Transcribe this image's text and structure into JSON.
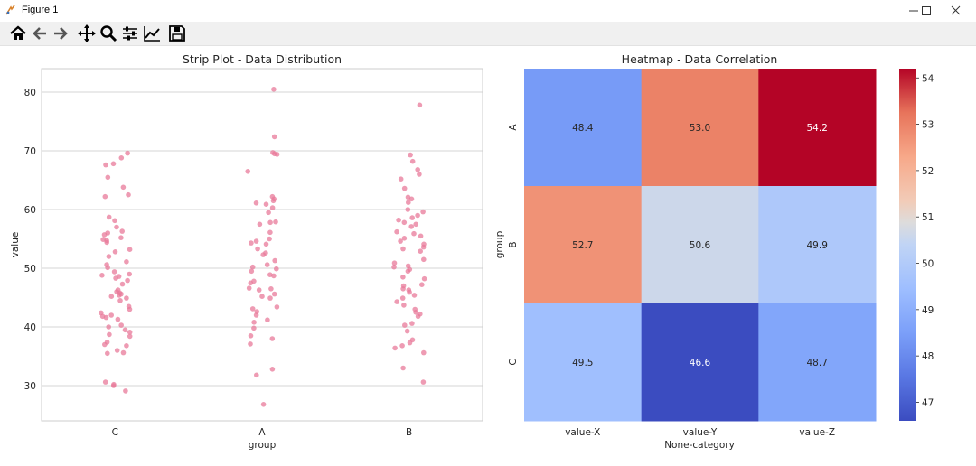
{
  "window": {
    "title": "Figure 1"
  },
  "toolbar": {
    "buttons": [
      {
        "name": "home-button",
        "icon": "home-icon"
      },
      {
        "name": "back-button",
        "icon": "arrow-left-icon"
      },
      {
        "name": "forward-button",
        "icon": "arrow-right-icon"
      },
      {
        "name": "pan-button",
        "icon": "move-icon"
      },
      {
        "name": "zoom-button",
        "icon": "magnifier-icon"
      },
      {
        "name": "configure-subplots-button",
        "icon": "sliders-icon"
      },
      {
        "name": "edit-axes-button",
        "icon": "chart-line-icon"
      },
      {
        "name": "save-button",
        "icon": "floppy-disk-icon"
      }
    ]
  },
  "chart_data": [
    {
      "type": "scatter",
      "subtype": "strip",
      "title": "Strip Plot - Data Distribution",
      "xlabel": "group",
      "ylabel": "value",
      "categories": [
        "C",
        "A",
        "B"
      ],
      "ylim": [
        24,
        84
      ],
      "yticks": [
        30,
        40,
        50,
        60,
        70,
        80
      ],
      "grid": true,
      "marker_color": "#e8799a",
      "series": [
        {
          "name": "C",
          "values": [
            69.6,
            68.8,
            67.8,
            67.6,
            65.5,
            63.8,
            62.5,
            62.2,
            58.7,
            58.1,
            57.0,
            56.3,
            56.0,
            55.7,
            55.2,
            54.9,
            54.7,
            54.4,
            53.2,
            52.8,
            52.0,
            51.1,
            50.6,
            50.1,
            49.4,
            49.0,
            48.8,
            48.6,
            48.3,
            47.9,
            47.3,
            46.3,
            46.0,
            45.8,
            45.6,
            45.4,
            45.2,
            44.9,
            44.5,
            43.5,
            43.0,
            42.4,
            42.0,
            41.8,
            41.6,
            41.3,
            40.3,
            40.0,
            39.5,
            39.1,
            38.7,
            38.4,
            37.4,
            37.0,
            36.8,
            36.0,
            35.6,
            35.5,
            30.6,
            30.2,
            30.0,
            29.1
          ]
        },
        {
          "name": "A",
          "values": [
            80.5,
            72.4,
            69.7,
            69.5,
            69.4,
            66.5,
            62.2,
            61.8,
            61.5,
            61.1,
            60.9,
            60.3,
            59.5,
            57.9,
            57.8,
            57.5,
            56.1,
            55.0,
            54.6,
            54.3,
            54.1,
            53.3,
            52.6,
            52.3,
            51.3,
            50.6,
            50.2,
            49.9,
            49.5,
            48.9,
            48.7,
            47.8,
            47.5,
            46.6,
            46.5,
            46.3,
            45.6,
            45.2,
            44.9,
            43.4,
            43.1,
            42.6,
            42.0,
            41.2,
            40.8,
            39.8,
            38.5,
            38.0,
            37.1,
            32.8,
            31.8,
            26.8
          ]
        },
        {
          "name": "B",
          "values": [
            77.8,
            69.3,
            68.2,
            66.8,
            66.0,
            65.2,
            63.6,
            62.1,
            61.8,
            61.2,
            60.0,
            59.6,
            59.0,
            58.6,
            58.2,
            57.8,
            57.5,
            57.1,
            56.2,
            55.9,
            55.5,
            55.1,
            54.6,
            54.1,
            53.6,
            53.3,
            52.9,
            51.5,
            50.9,
            50.4,
            50.2,
            49.8,
            49.5,
            48.5,
            48.2,
            47.2,
            47.0,
            46.5,
            46.3,
            45.9,
            45.4,
            44.9,
            44.3,
            43.7,
            43.0,
            42.5,
            42.2,
            41.8,
            40.6,
            40.3,
            39.3,
            37.8,
            37.3,
            36.8,
            36.4,
            35.6,
            33.0,
            30.6
          ]
        }
      ]
    },
    {
      "type": "heatmap",
      "title": "Heatmap - Data Correlation",
      "xlabel": "None-category",
      "ylabel": "group",
      "x_categories": [
        "value-X",
        "value-Y",
        "value-Z"
      ],
      "y_categories": [
        "A",
        "B",
        "C"
      ],
      "values": [
        [
          48.4,
          53.0,
          54.2
        ],
        [
          52.7,
          50.6,
          49.9
        ],
        [
          49.5,
          46.6,
          48.7
        ]
      ],
      "colormap": "coolwarm",
      "vmin": 46.6,
      "vmax": 54.2,
      "colorbar_ticks": [
        47,
        48,
        49,
        50,
        51,
        52,
        53,
        54
      ]
    }
  ]
}
